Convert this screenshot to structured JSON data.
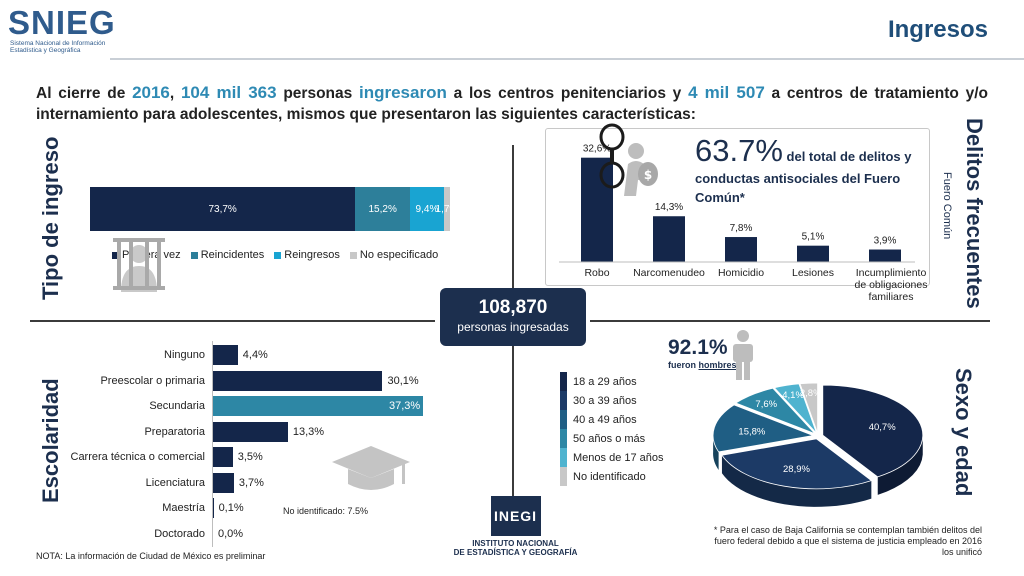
{
  "header": {
    "logo_word": "SNIEG",
    "logo_sub_1": "Sistema Nacional de Información",
    "logo_sub_2": "Estadística y Geográfica",
    "title": "Ingresos"
  },
  "intro": {
    "p1": "Al cierre de ",
    "year": "2016",
    "p2": ", ",
    "num_people": "104 mil 363",
    "p3": " personas ",
    "verb": "ingresaron",
    "p4": " a los centros penitenciarios y ",
    "num_teens": "4 mil 507",
    "p5": " a centros de tratamiento y/o internamiento para adolescentes, mismos que presentaron las siguientes características:"
  },
  "center": {
    "number": "108,870",
    "label": "personas ingresadas"
  },
  "sections": {
    "tipo": "Tipo de ingreso",
    "delitos": "Delitos frecuentes",
    "delitos_sub": "Fuero Común",
    "escolaridad": "Escolaridad",
    "sexo": "Sexo y edad"
  },
  "colors": {
    "navy": "#14264a",
    "teal": "#2d87a5",
    "cyan": "#19a4d2",
    "gray": "#c8c8c8",
    "accent": "#2e8ab4"
  },
  "chart_data": [
    {
      "type": "bar",
      "orientation": "horizontal-stacked",
      "series": [
        {
          "name": "Primera vez",
          "value": 73.7,
          "label": "73,7%",
          "color": "#14264a"
        },
        {
          "name": "Reincidentes",
          "value": 15.2,
          "label": "15,2%",
          "color": "#2d7f9a"
        },
        {
          "name": "Reingresos",
          "value": 9.4,
          "label": "9,4%",
          "color": "#19a4d2"
        },
        {
          "name": "No especificado",
          "value": 1.7,
          "label": "1,7%",
          "color": "#c8c8c8"
        }
      ],
      "legend": "bottom"
    },
    {
      "type": "bar",
      "categories": [
        "Robo",
        "Narcomenudeo",
        "Homicidio",
        "Lesiones",
        "Incumplimiento de obligaciones familiares"
      ],
      "values": [
        32.6,
        14.3,
        7.8,
        5.1,
        3.9
      ],
      "value_labels": [
        "32,6%",
        "14,3%",
        "7,8%",
        "5,1%",
        "3,9%"
      ],
      "ylim": [
        0,
        35
      ],
      "annotation": {
        "pct": "63.7%",
        "text": " del total de delitos y conductas antisociales del Fuero Común*"
      }
    },
    {
      "type": "bar",
      "orientation": "horizontal",
      "categories": [
        "Ninguno",
        "Preescolar o primaria",
        "Secundaria",
        "Preparatoria",
        "Carrera técnica o comercial",
        "Licenciatura",
        "Maestría",
        "Doctorado"
      ],
      "values": [
        4.4,
        30.1,
        37.3,
        13.3,
        3.5,
        3.7,
        0.1,
        0.0
      ],
      "value_labels": [
        "4,4%",
        "30,1%",
        "37,3%",
        "13,3%",
        "3,5%",
        "3,7%",
        "0,1%",
        "0,0%"
      ],
      "xlim": [
        0,
        40
      ],
      "highlight_index": 2,
      "note": "No identificado: 7.5%"
    },
    {
      "type": "pie",
      "style": "3d-exploded",
      "slices": [
        {
          "name": "18 a 29 años",
          "value": 40.7,
          "label": "40,7%",
          "color": "#14264a"
        },
        {
          "name": "30 a 39 años",
          "value": 28.9,
          "label": "28,9%",
          "color": "#1c3a66"
        },
        {
          "name": "40 a 49 años",
          "value": 15.8,
          "label": "15,8%",
          "color": "#1f5e84"
        },
        {
          "name": "50 años o más",
          "value": 7.6,
          "label": "7,6%",
          "color": "#2d87a5"
        },
        {
          "name": "Menos de 17 años",
          "value": 4.1,
          "label": "4,1%",
          "color": "#4fb3cf"
        },
        {
          "name": "No identificado",
          "value": 2.8,
          "label": "2,8%",
          "color": "#c8c8c8"
        }
      ],
      "legend": "left"
    }
  ],
  "males": {
    "pct": "92.1%",
    "text_pre": "fueron ",
    "text_u": "hombres"
  },
  "inegi": {
    "word": "INEGI",
    "name1": "INSTITUTO NACIONAL",
    "name2": "DE ESTADÍSTICA Y GEOGRAFÍA"
  },
  "notes": {
    "nota": "NOTA: La información de Ciudad de México es preliminar",
    "footnote": "* Para el caso de Baja California se contemplan también delitos del fuero federal debido a que el sistema de justicia empleado en 2016 los unificó"
  }
}
